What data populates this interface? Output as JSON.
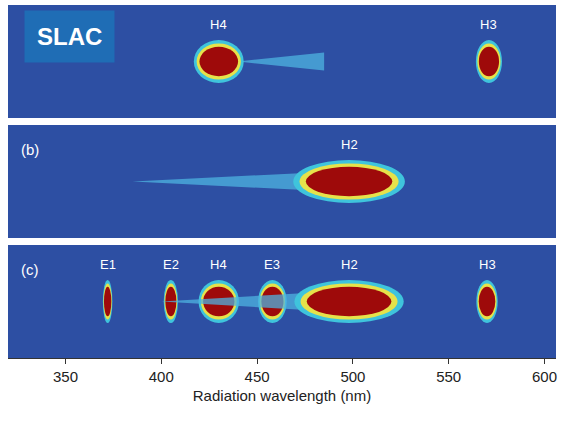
{
  "chart_data": {
    "type": "spectrum",
    "annotation": "SLAC",
    "xlabel": "Radiation wavelength (nm)",
    "xlim": [
      320,
      606
    ],
    "xticks": [
      350,
      400,
      450,
      500,
      550,
      600
    ],
    "tick_labels": "x",
    "panels": [
      {
        "peaks": [
          {
            "name": "H4",
            "wavelength": 430,
            "width": 21,
            "tail": [
              440,
              485
            ]
          },
          {
            "name": "H3",
            "wavelength": 571,
            "width": 11
          }
        ]
      },
      {
        "label": "(b)",
        "peaks": [
          {
            "name": "H2",
            "wavelength": 498,
            "width": 47,
            "tail": [
              385,
              480
            ]
          }
        ]
      },
      {
        "label": "(c)",
        "peaks": [
          {
            "name": "E1",
            "wavelength": 372,
            "width": 4
          },
          {
            "name": "E2",
            "wavelength": 405,
            "width": 6
          },
          {
            "name": "H4",
            "wavelength": 430,
            "width": 17
          },
          {
            "name": "E3",
            "wavelength": 458,
            "width": 12
          },
          {
            "name": "H2",
            "wavelength": 498,
            "width": 46,
            "tail": [
              400,
              480
            ]
          },
          {
            "name": "H3",
            "wavelength": 570,
            "width": 9
          }
        ]
      }
    ]
  }
}
